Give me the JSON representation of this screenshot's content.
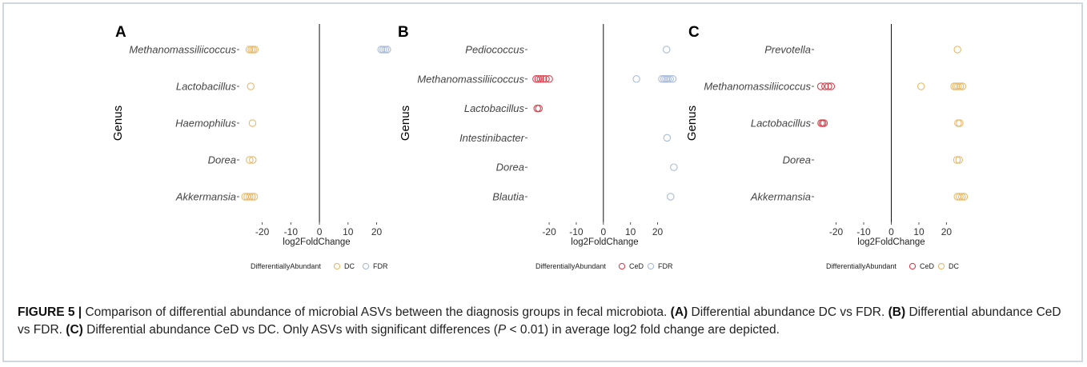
{
  "colors": {
    "DC": "#e8b96a",
    "FDR": "#a9bbd8",
    "CeD": "#d9434e",
    "border": "#cfd8e2"
  },
  "chart_data": [
    {
      "panel": "A",
      "type": "scatter",
      "xlabel": "log2FoldChange",
      "ylabel": "Genus",
      "xticks": [
        -20,
        -10,
        0,
        10,
        20
      ],
      "xlim": [
        -28,
        26
      ],
      "genera": [
        "Methanomassiliicoccus",
        "Lactobacillus",
        "Haemophilus",
        "Dorea",
        "Akkermansia"
      ],
      "legend_title": "DifferentiallyAbundant",
      "legend": [
        "DC",
        "FDR"
      ],
      "points": [
        {
          "genus": "Methanomassiliicoccus",
          "x": -24.5,
          "group": "DC"
        },
        {
          "genus": "Methanomassiliicoccus",
          "x": -23.8,
          "group": "DC"
        },
        {
          "genus": "Methanomassiliicoccus",
          "x": -23.2,
          "group": "DC"
        },
        {
          "genus": "Methanomassiliicoccus",
          "x": -22.6,
          "group": "DC"
        },
        {
          "genus": "Methanomassiliicoccus",
          "x": 21.6,
          "group": "FDR"
        },
        {
          "genus": "Methanomassiliicoccus",
          "x": 22.3,
          "group": "FDR"
        },
        {
          "genus": "Methanomassiliicoccus",
          "x": 23.0,
          "group": "FDR"
        },
        {
          "genus": "Methanomassiliicoccus",
          "x": 23.7,
          "group": "FDR"
        },
        {
          "genus": "Lactobacillus",
          "x": -24.0,
          "group": "DC"
        },
        {
          "genus": "Haemophilus",
          "x": -23.4,
          "group": "DC"
        },
        {
          "genus": "Dorea",
          "x": -24.4,
          "group": "DC"
        },
        {
          "genus": "Dorea",
          "x": -23.3,
          "group": "DC"
        },
        {
          "genus": "Akkermansia",
          "x": -26.0,
          "group": "DC"
        },
        {
          "genus": "Akkermansia",
          "x": -25.2,
          "group": "DC"
        },
        {
          "genus": "Akkermansia",
          "x": -24.4,
          "group": "DC"
        },
        {
          "genus": "Akkermansia",
          "x": -23.6,
          "group": "DC"
        },
        {
          "genus": "Akkermansia",
          "x": -22.8,
          "group": "DC"
        }
      ]
    },
    {
      "panel": "B",
      "type": "scatter",
      "xlabel": "log2FoldChange",
      "ylabel": "Genus",
      "xticks": [
        -20,
        -10,
        0,
        10,
        20
      ],
      "xlim": [
        -28,
        29
      ],
      "genera": [
        "Pediococcus",
        "Methanomassiliicoccus",
        "Lactobacillus",
        "Intestinibacter",
        "Dorea",
        "Blautia"
      ],
      "legend_title": "DifferentiallyAbundant",
      "legend": [
        "CeD",
        "FDR"
      ],
      "points": [
        {
          "genus": "Pediococcus",
          "x": 23.3,
          "group": "FDR"
        },
        {
          "genus": "Methanomassiliicoccus",
          "x": -24.8,
          "group": "CeD"
        },
        {
          "genus": "Methanomassiliicoccus",
          "x": -24.0,
          "group": "CeD"
        },
        {
          "genus": "Methanomassiliicoccus",
          "x": -23.2,
          "group": "CeD"
        },
        {
          "genus": "Methanomassiliicoccus",
          "x": -22.2,
          "group": "CeD"
        },
        {
          "genus": "Methanomassiliicoccus",
          "x": -21.2,
          "group": "CeD"
        },
        {
          "genus": "Methanomassiliicoccus",
          "x": -20.0,
          "group": "CeD"
        },
        {
          "genus": "Methanomassiliicoccus",
          "x": 12.2,
          "group": "FDR"
        },
        {
          "genus": "Methanomassiliicoccus",
          "x": 21.6,
          "group": "FDR"
        },
        {
          "genus": "Methanomassiliicoccus",
          "x": 22.4,
          "group": "FDR"
        },
        {
          "genus": "Methanomassiliicoccus",
          "x": 23.1,
          "group": "FDR"
        },
        {
          "genus": "Methanomassiliicoccus",
          "x": 23.8,
          "group": "FDR"
        },
        {
          "genus": "Methanomassiliicoccus",
          "x": 24.6,
          "group": "FDR"
        },
        {
          "genus": "Methanomassiliicoccus",
          "x": 25.6,
          "group": "FDR"
        },
        {
          "genus": "Lactobacillus",
          "x": -24.4,
          "group": "CeD"
        },
        {
          "genus": "Lactobacillus",
          "x": -23.8,
          "group": "CeD"
        },
        {
          "genus": "Intestinibacter",
          "x": 23.5,
          "group": "FDR"
        },
        {
          "genus": "Dorea",
          "x": 26.0,
          "group": "FDR"
        },
        {
          "genus": "Blautia",
          "x": 24.8,
          "group": "FDR"
        }
      ]
    },
    {
      "panel": "C",
      "type": "scatter",
      "xlabel": "log2FoldChange",
      "ylabel": "Genus",
      "xticks": [
        -20,
        -10,
        0,
        10,
        20
      ],
      "xlim": [
        -28,
        28
      ],
      "genera": [
        "Prevotella",
        "Methanomassiliicoccus",
        "Lactobacillus",
        "Dorea",
        "Akkermansia"
      ],
      "legend_title": "DifferentiallyAbundant",
      "legend": [
        "CeD",
        "DC"
      ],
      "points": [
        {
          "genus": "Prevotella",
          "x": 24.0,
          "group": "DC"
        },
        {
          "genus": "Methanomassiliicoccus",
          "x": -25.5,
          "group": "CeD"
        },
        {
          "genus": "Methanomassiliicoccus",
          "x": -24.0,
          "group": "CeD"
        },
        {
          "genus": "Methanomassiliicoccus",
          "x": -22.8,
          "group": "CeD"
        },
        {
          "genus": "Methanomassiliicoccus",
          "x": -21.8,
          "group": "CeD"
        },
        {
          "genus": "Methanomassiliicoccus",
          "x": 10.8,
          "group": "DC"
        },
        {
          "genus": "Methanomassiliicoccus",
          "x": 22.8,
          "group": "DC"
        },
        {
          "genus": "Methanomassiliicoccus",
          "x": 23.5,
          "group": "DC"
        },
        {
          "genus": "Methanomassiliicoccus",
          "x": 24.2,
          "group": "DC"
        },
        {
          "genus": "Methanomassiliicoccus",
          "x": 25.0,
          "group": "DC"
        },
        {
          "genus": "Methanomassiliicoccus",
          "x": 25.8,
          "group": "DC"
        },
        {
          "genus": "Lactobacillus",
          "x": -25.4,
          "group": "CeD"
        },
        {
          "genus": "Lactobacillus",
          "x": -24.9,
          "group": "CeD"
        },
        {
          "genus": "Lactobacillus",
          "x": -24.4,
          "group": "CeD"
        },
        {
          "genus": "Lactobacillus",
          "x": 24.2,
          "group": "DC"
        },
        {
          "genus": "Lactobacillus",
          "x": 24.8,
          "group": "DC"
        },
        {
          "genus": "Dorea",
          "x": 23.8,
          "group": "DC"
        },
        {
          "genus": "Dorea",
          "x": 24.6,
          "group": "DC"
        },
        {
          "genus": "Akkermansia",
          "x": 24.0,
          "group": "DC"
        },
        {
          "genus": "Akkermansia",
          "x": 24.8,
          "group": "DC"
        },
        {
          "genus": "Akkermansia",
          "x": 25.6,
          "group": "DC"
        },
        {
          "genus": "Akkermansia",
          "x": 26.4,
          "group": "DC"
        }
      ]
    }
  ],
  "caption": {
    "label": "FIGURE 5 |",
    "intro": " Comparison of differential abundance of microbial ASVs between the diagnosis groups in fecal microbiota. ",
    "a_tag": "(A)",
    "a_text": " Differential abundance DC vs FDR. ",
    "b_tag": "(B)",
    "b_text": " Differential abundance CeD vs FDR. ",
    "c_tag": "(C)",
    "c_text": " Differential abundance CeD vs DC. Only ASVs with significant differences (",
    "p_symbol": "P",
    "p_text": " < 0.01) in average log2 fold change are depicted."
  }
}
